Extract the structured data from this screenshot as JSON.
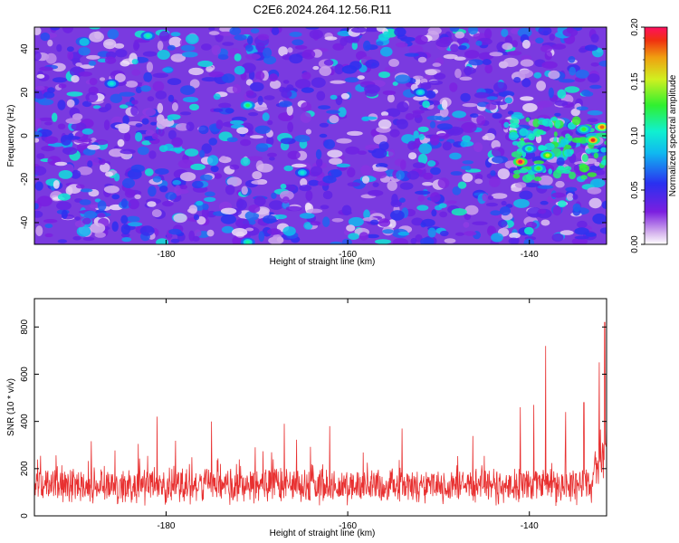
{
  "title": "C2E6.2024.264.12.56.R11",
  "chart_data": [
    {
      "type": "heatmap",
      "xlabel": "Height of straight line (km)",
      "ylabel": "Frequency (Hz)",
      "xlim": [
        -194.5,
        -131.5
      ],
      "ylim": [
        -50,
        50
      ],
      "x_ticks": [
        "-180",
        "-160",
        "-140"
      ],
      "y_ticks": [
        "-40",
        "-20",
        "0",
        "20",
        "40"
      ],
      "colorbar": {
        "label": "Normalized spectral amplitude",
        "range": [
          0,
          0.2
        ],
        "ticks": [
          "0.00",
          "0.05",
          "0.10",
          "0.15",
          "0.20"
        ]
      },
      "hotspots": [
        {
          "x": -141,
          "y": -12,
          "value": 0.2
        },
        {
          "x": -133,
          "y": -2,
          "value": 0.19
        },
        {
          "x": -132,
          "y": 4,
          "value": 0.18
        },
        {
          "x": -138,
          "y": -9,
          "value": 0.15
        },
        {
          "x": -139,
          "y": -15,
          "value": 0.13
        },
        {
          "x": -134,
          "y": 3,
          "value": 0.13
        },
        {
          "x": -140,
          "y": -6,
          "value": 0.12
        },
        {
          "x": -171,
          "y": 14,
          "value": 0.12
        },
        {
          "x": -182,
          "y": 46,
          "value": 0.11
        },
        {
          "x": -171,
          "y": -49,
          "value": 0.11
        },
        {
          "x": -186,
          "y": 24,
          "value": 0.1
        },
        {
          "x": -165,
          "y": -17,
          "value": 0.1
        },
        {
          "x": -152,
          "y": 20,
          "value": 0.1
        }
      ]
    },
    {
      "type": "line",
      "xlabel": "Height of straight line (km)",
      "ylabel": "SNR (10 * v/v)",
      "xlim": [
        -194.5,
        -131.5
      ],
      "ylim": [
        0,
        920
      ],
      "x_ticks": [
        "-180",
        "-160",
        "-140"
      ],
      "y_ticks": [
        "0",
        "200",
        "400",
        "600",
        "800"
      ],
      "series": [
        {
          "color": "#e83030",
          "baseline": 140,
          "spread": 60,
          "peaks": [
            {
              "x": -181,
              "y": 420
            },
            {
              "x": -175,
              "y": 400
            },
            {
              "x": -167,
              "y": 390
            },
            {
              "x": -162,
              "y": 380
            },
            {
              "x": -154,
              "y": 370
            },
            {
              "x": -141,
              "y": 460
            },
            {
              "x": -139.5,
              "y": 470
            },
            {
              "x": -138.2,
              "y": 720
            },
            {
              "x": -136,
              "y": 440
            },
            {
              "x": -134,
              "y": 480
            },
            {
              "x": -132.3,
              "y": 650
            },
            {
              "x": -131.7,
              "y": 820
            }
          ]
        }
      ]
    }
  ]
}
